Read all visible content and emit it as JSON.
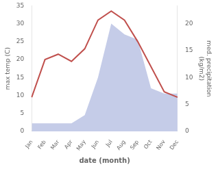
{
  "chart_data": {
    "type": "line",
    "categories": [
      "Jan",
      "Feb",
      "Mar",
      "Apr",
      "May",
      "Jun",
      "Jul",
      "Aug",
      "Sep",
      "Oct",
      "Nov",
      "Dec"
    ],
    "series": [
      {
        "type": "area",
        "axis": "y2",
        "color": "#c5cce8",
        "values": [
          1.5,
          1.5,
          1.5,
          1.5,
          3.0,
          10.0,
          20.0,
          18.0,
          17.0,
          8.0,
          7.0,
          7.0
        ]
      },
      {
        "type": "line",
        "color": "#c0504d",
        "values": [
          9.5,
          20.0,
          21.5,
          19.5,
          23.0,
          31.0,
          33.5,
          31.0,
          25.0,
          18.0,
          11.0,
          9.5
        ]
      }
    ],
    "xlabel": "date (month)",
    "ylabel": "max temp (C)",
    "y2label": "med. precipitation\n(kg/m2)",
    "ylim": [
      0,
      35
    ],
    "yticks": [
      0,
      5,
      10,
      15,
      20,
      25,
      30,
      35
    ],
    "y2lim": [
      0,
      23.3
    ],
    "y2ticks": [
      0,
      5,
      10,
      15,
      20
    ],
    "grid": false
  }
}
